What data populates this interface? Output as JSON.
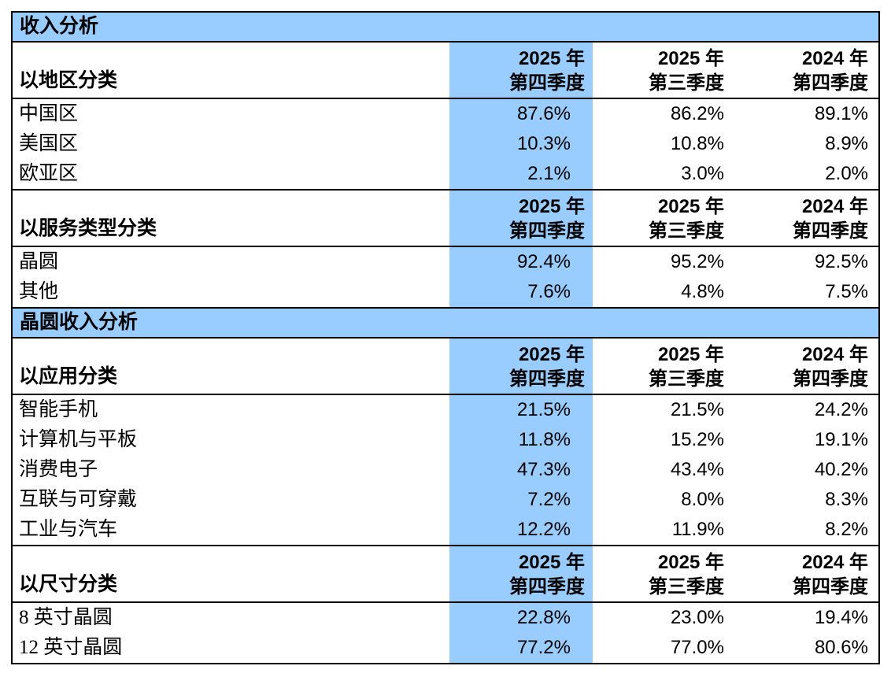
{
  "meta": {
    "accent_blue": "#99CCFF",
    "border_color": "#000000",
    "background": "#FFFFFF"
  },
  "quarter_headers": {
    "current": {
      "line1": "2025 年",
      "line2": "第四季度"
    },
    "previous": {
      "line1": "2025 年",
      "line2": "第三季度"
    },
    "year_ago": {
      "line1": "2024 年",
      "line2": "第四季度"
    }
  },
  "sections": [
    {
      "band_title": "收入分析",
      "groups": [
        {
          "header": "以地区分类",
          "rows": [
            {
              "label": "中国区",
              "q4_2025": "87.6%",
              "q3_2025": "86.2%",
              "q4_2024": "89.1%"
            },
            {
              "label": "美国区",
              "q4_2025": "10.3%",
              "q3_2025": "10.8%",
              "q4_2024": "8.9%"
            },
            {
              "label": "欧亚区",
              "q4_2025": "2.1%",
              "q3_2025": "3.0%",
              "q4_2024": "2.0%"
            }
          ]
        },
        {
          "header": "以服务类型分类",
          "rows": [
            {
              "label": "晶圆",
              "q4_2025": "92.4%",
              "q3_2025": "95.2%",
              "q4_2024": "92.5%"
            },
            {
              "label": "其他",
              "q4_2025": "7.6%",
              "q3_2025": "4.8%",
              "q4_2024": "7.5%"
            }
          ]
        }
      ]
    },
    {
      "band_title": "晶圆收入分析",
      "groups": [
        {
          "header": "以应用分类",
          "rows": [
            {
              "label": "智能手机",
              "q4_2025": "21.5%",
              "q3_2025": "21.5%",
              "q4_2024": "24.2%"
            },
            {
              "label": "计算机与平板",
              "q4_2025": "11.8%",
              "q3_2025": "15.2%",
              "q4_2024": "19.1%"
            },
            {
              "label": "消费电子",
              "q4_2025": "47.3%",
              "q3_2025": "43.4%",
              "q4_2024": "40.2%"
            },
            {
              "label": "互联与可穿戴",
              "q4_2025": "7.2%",
              "q3_2025": "8.0%",
              "q4_2024": "8.3%"
            },
            {
              "label": "工业与汽车",
              "q4_2025": "12.2%",
              "q3_2025": "11.9%",
              "q4_2024": "8.2%"
            }
          ]
        },
        {
          "header": "以尺寸分类",
          "rows": [
            {
              "label": "8 英寸晶圆",
              "q4_2025": "22.8%",
              "q3_2025": "23.0%",
              "q4_2024": "19.4%"
            },
            {
              "label": "12 英寸晶圆",
              "q4_2025": "77.2%",
              "q3_2025": "77.0%",
              "q4_2024": "80.6%"
            }
          ]
        }
      ]
    }
  ]
}
